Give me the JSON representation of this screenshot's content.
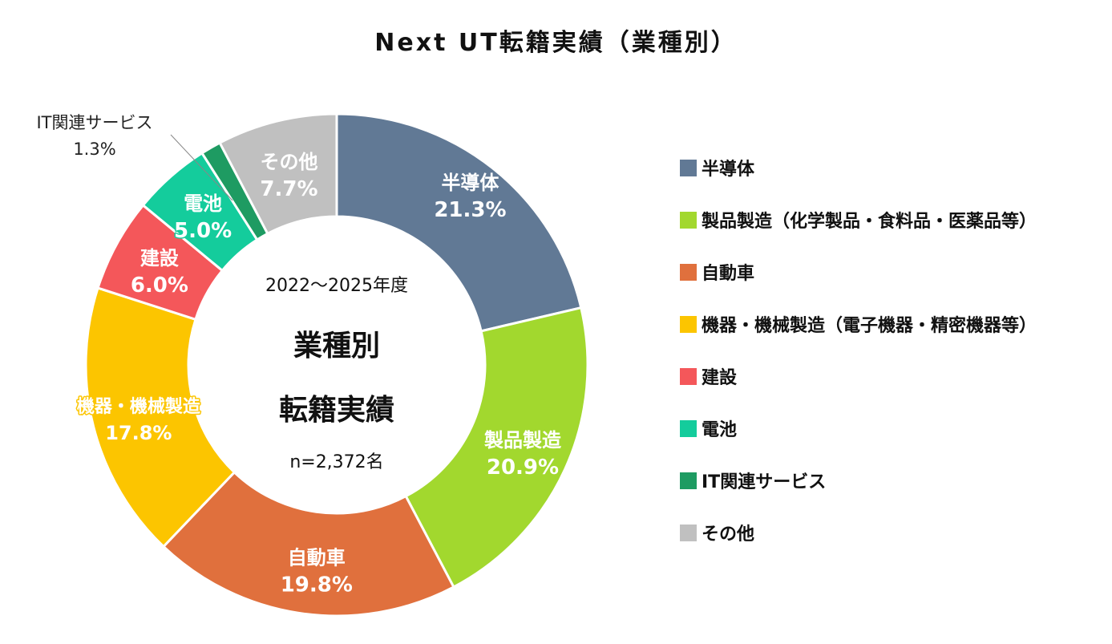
{
  "chart_data": {
    "type": "pie",
    "title": "Next UT転籍実績（業種別）",
    "center_period": "2022～2025年度",
    "center_title_line1": "業種別",
    "center_title_line2": "転籍実績",
    "center_n": "n=2,372名",
    "slices": [
      {
        "name": "半導体",
        "legend": "半導体",
        "label": "半導体",
        "value": 21.3,
        "value_label": "21.3%",
        "color": "#617995"
      },
      {
        "name": "製品製造",
        "legend": "製品製造（化学製品・食料品・医薬品等）",
        "label": "製品製造",
        "value": 20.9,
        "value_label": "20.9%",
        "color": "#a2d82e"
      },
      {
        "name": "自動車",
        "legend": "自動車",
        "label": "自動車",
        "value": 19.8,
        "value_label": "19.8%",
        "color": "#e0703d"
      },
      {
        "name": "機器・機械製造",
        "legend": "機器・機械製造（電子機器・精密機器等）",
        "label": "機器・機械製造",
        "value": 17.8,
        "value_label": "17.8%",
        "color": "#fcc500"
      },
      {
        "name": "建設",
        "legend": "建設",
        "label": "建設",
        "value": 6.0,
        "value_label": "6.0%",
        "color": "#f4575a"
      },
      {
        "name": "電池",
        "legend": "電池",
        "label": "電池",
        "value": 5.0,
        "value_label": "5.0%",
        "color": "#14cc9c"
      },
      {
        "name": "IT関連サービス",
        "legend": "IT関連サービス",
        "label": "IT関連サービス",
        "value": 1.3,
        "value_label": "1.3%",
        "color": "#1e9b62"
      },
      {
        "name": "その他",
        "legend": "その他",
        "label": "その他",
        "value": 7.7,
        "value_label": "7.7%",
        "color": "#c0c0c0"
      }
    ],
    "legend_position": "right"
  }
}
